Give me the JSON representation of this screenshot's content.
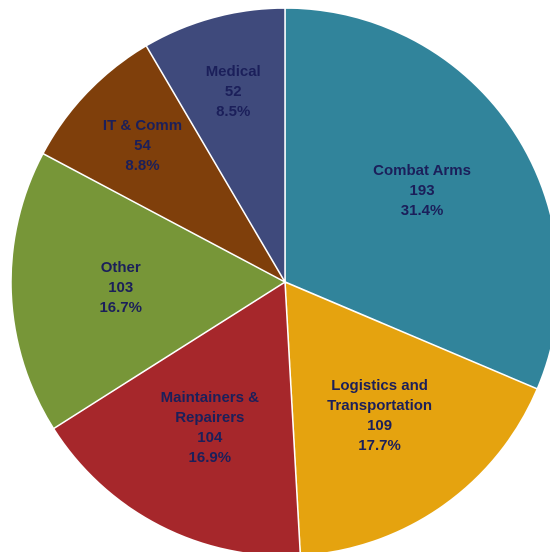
{
  "chart_data": {
    "type": "pie",
    "categories": [
      "Combat Arms",
      "Logistics and Transportation",
      "Maintainers & Repairers",
      "Other",
      "IT & Comm",
      "Medical"
    ],
    "values": [
      193,
      109,
      104,
      103,
      54,
      52
    ],
    "shares": [
      31.4,
      17.7,
      16.9,
      16.7,
      8.8,
      8.5
    ],
    "share_labels": [
      "31.4%",
      "17.7%",
      "16.9%",
      "16.7%",
      "8.8%",
      "8.5%"
    ],
    "colors": [
      "#31849b",
      "#e5a30f",
      "#a6272b",
      "#779638",
      "#7f3f0b",
      "#3f4a7c"
    ]
  }
}
